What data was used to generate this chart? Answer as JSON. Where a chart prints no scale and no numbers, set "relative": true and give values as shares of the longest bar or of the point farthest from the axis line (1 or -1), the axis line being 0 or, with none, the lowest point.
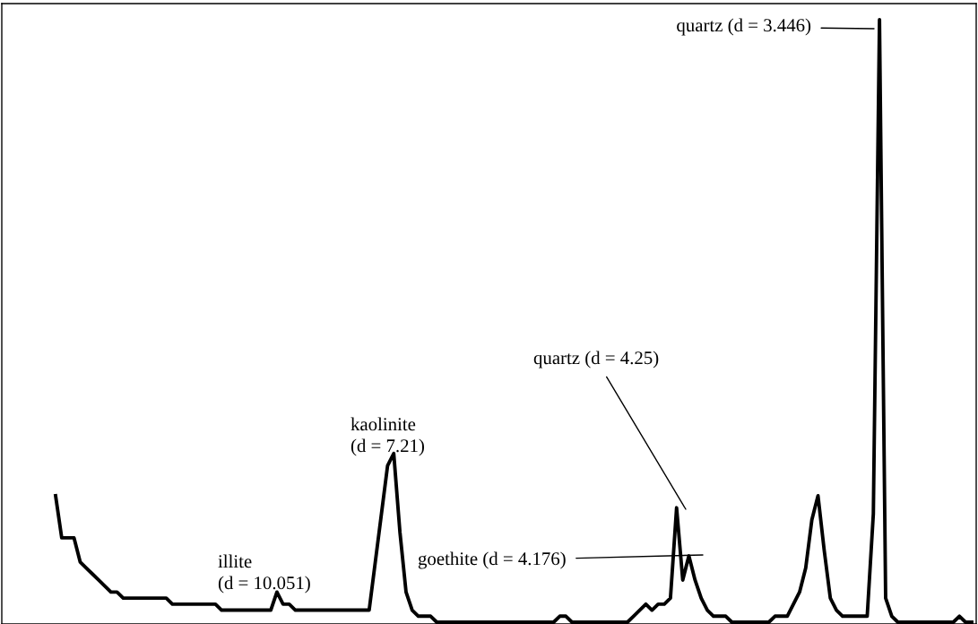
{
  "chart_data": {
    "type": "line",
    "relative": true,
    "categories": [
      null,
      null,
      null,
      null,
      null,
      null,
      null,
      null,
      null,
      null,
      null,
      null,
      null,
      null,
      null,
      null,
      null,
      null,
      null,
      null,
      null,
      null,
      null,
      null,
      null,
      null,
      null,
      null,
      null,
      null,
      null,
      null,
      null,
      null,
      null,
      null,
      null,
      null,
      null,
      null,
      null,
      null,
      null,
      null,
      null,
      null,
      null,
      null,
      null,
      null,
      null,
      null,
      null,
      null,
      null,
      null,
      null,
      null,
      null,
      null,
      null,
      null,
      null,
      null,
      null,
      null,
      null,
      null,
      null,
      null,
      null,
      null,
      null,
      null,
      null,
      null,
      null,
      null,
      null,
      null,
      null,
      null,
      null,
      null,
      null,
      null,
      null,
      null,
      null,
      null,
      null,
      null,
      null,
      null,
      null,
      null,
      null,
      null,
      null,
      null,
      null,
      null,
      null,
      null,
      null,
      null,
      null,
      null,
      null,
      null,
      null,
      null,
      null,
      null,
      null,
      null,
      null,
      null,
      null,
      null,
      null,
      null,
      null,
      null,
      null,
      null,
      null,
      null,
      null,
      null,
      null,
      null,
      null,
      null,
      null,
      null,
      null,
      null,
      null,
      null,
      null,
      null,
      null,
      null,
      null,
      null,
      null,
      null,
      null,
      null
    ],
    "series": [
      {
        "color": "#000000",
        "values": [
          0.21,
          0.14,
          0.14,
          0.14,
          0.1,
          0.09,
          0.08,
          0.07,
          0.06,
          0.05,
          0.05,
          0.04,
          0.04,
          0.04,
          0.04,
          0.04,
          0.04,
          0.04,
          0.04,
          0.03,
          0.03,
          0.03,
          0.03,
          0.03,
          0.03,
          0.03,
          0.03,
          0.02,
          0.02,
          0.02,
          0.02,
          0.02,
          0.02,
          0.02,
          0.02,
          0.02,
          0.05,
          0.03,
          0.03,
          0.02,
          0.02,
          0.02,
          0.02,
          0.02,
          0.02,
          0.02,
          0.02,
          0.02,
          0.02,
          0.02,
          0.02,
          0.02,
          0.1,
          0.18,
          0.26,
          0.28,
          0.15,
          0.05,
          0.02,
          0.01,
          0.01,
          0.01,
          0,
          0,
          0,
          0,
          0,
          0,
          0,
          0,
          0,
          0,
          0,
          0,
          0,
          0,
          0,
          0,
          0,
          0,
          0,
          0,
          0.01,
          0.01,
          0,
          0,
          0,
          0,
          0,
          0,
          0,
          0,
          0,
          0,
          0.01,
          0.02,
          0.03,
          0.02,
          0.03,
          0.03,
          0.04,
          0.19,
          0.07,
          0.11,
          0.07,
          0.04,
          0.02,
          0.01,
          0.01,
          0.01,
          0,
          0,
          0,
          0,
          0,
          0,
          0,
          0.01,
          0.01,
          0.01,
          0.03,
          0.05,
          0.09,
          0.17,
          0.21,
          0.12,
          0.04,
          0.02,
          0.01,
          0.01,
          0.01,
          0.01,
          0.01,
          0.18,
          1.0,
          0.04,
          0.01,
          0,
          0,
          0,
          0,
          0,
          0,
          0,
          0,
          0,
          0,
          0.01,
          0,
          0
        ]
      }
    ],
    "annotations": [
      "illite\n(d = 10.051)",
      "kaolinite\n(d = 7.21)",
      "goethite (d = 4.176)",
      "quartz (d = 4.25)",
      "quartz (d = 3.446)"
    ],
    "legend": false
  }
}
